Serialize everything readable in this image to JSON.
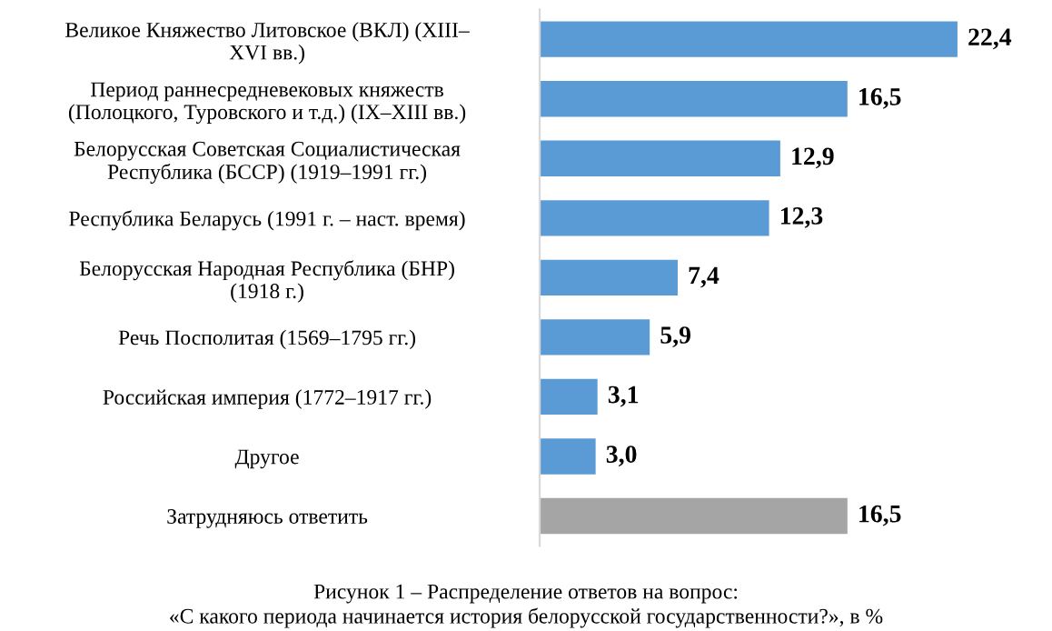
{
  "chart_data": {
    "type": "bar",
    "orientation": "horizontal",
    "categories": [
      "Великое Княжество Литовское (ВКЛ) (XIII–\nXVI вв.)",
      "Период раннесредневековых княжеств\n(Полоцкого, Туровского и т.д.) (IX–XIII вв.)",
      "Белорусская Советская Социалистическая\nРеспублика (БССР) (1919–1991 гг.)",
      "Республика Беларусь (1991 г. – наст. время)",
      "Белорусская Народная Республика (БНР)\n(1918 г.)",
      "Речь Посполитая (1569–1795 гг.)",
      "Российская империя (1772–1917 гг.)",
      "Другое",
      "Затрудняюсь ответить"
    ],
    "values": [
      22.4,
      16.5,
      12.9,
      12.3,
      7.4,
      5.9,
      3.1,
      3.0,
      16.5
    ],
    "colors": [
      "#5b9bd5",
      "#5b9bd5",
      "#5b9bd5",
      "#5b9bd5",
      "#5b9bd5",
      "#5b9bd5",
      "#5b9bd5",
      "#5b9bd5",
      "#a5a5a5"
    ],
    "value_labels": [
      "22,4",
      "16,5",
      "12,9",
      "12,3",
      "7,4",
      "5,9",
      "3,1",
      "3,0",
      "16,5"
    ],
    "tick_labels": "y",
    "grid": false,
    "legend": false,
    "annotations": [
      "Рисунок 1 – Распределение ответов на вопрос:\n«С какого периода начинается история белорусской государственности?», в %"
    ]
  }
}
